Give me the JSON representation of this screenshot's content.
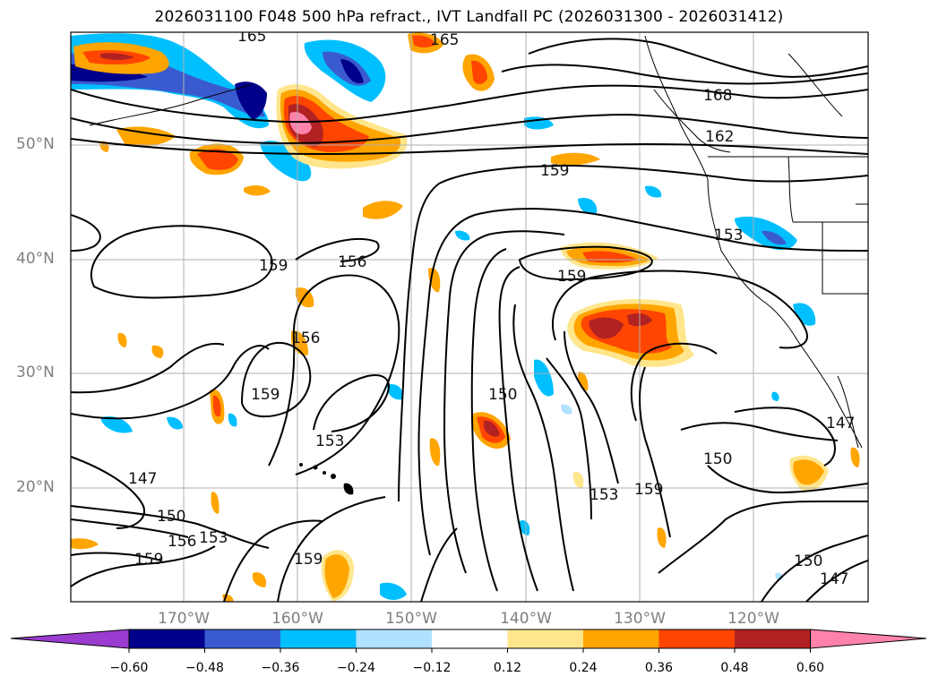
{
  "title": "2026031100 F048 500 hPa refract., IVT Landfall PC (2026031300 - 2026031412)",
  "lat_labels": [
    "50°N",
    "40°N",
    "30°N",
    "20°N"
  ],
  "lon_labels": [
    "170°W",
    "160°W",
    "150°W",
    "140°W",
    "130°W",
    "120°W"
  ],
  "colorbar": {
    "ticks": [
      "−0.60",
      "−0.48",
      "−0.36",
      "−0.24",
      "−0.12",
      "0.12",
      "0.24",
      "0.36",
      "0.48",
      "0.60"
    ],
    "colors": [
      "#9a3ccf",
      "#00008b",
      "#3a5bcf",
      "#00bfff",
      "#b0e2ff",
      "#ffffff",
      "#ffe68c",
      "#ffa500",
      "#ff4500",
      "#b22222",
      "#ff82ab"
    ]
  },
  "contour_labels": [
    "165",
    "165",
    "168",
    "162",
    "159",
    "153",
    "159",
    "156",
    "159",
    "156",
    "159",
    "153",
    "150",
    "153",
    "159",
    "150",
    "147",
    "150",
    "153",
    "156",
    "159",
    "159",
    "150",
    "147",
    "147"
  ],
  "map_colors": {
    "frame": "#000000",
    "grid": "#b0b0b0",
    "contour": "#000000"
  }
}
